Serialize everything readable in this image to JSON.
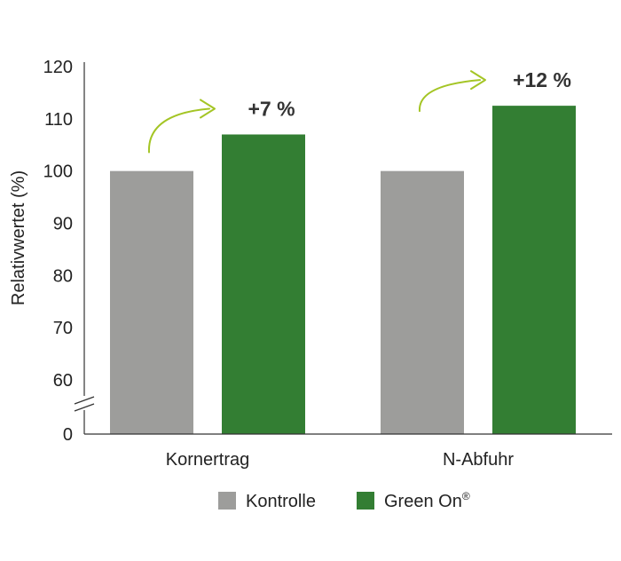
{
  "chart_data": {
    "type": "bar",
    "ylabel": "Relativwertet (%)",
    "xlabel": "",
    "title": "",
    "categories": [
      "Kornertrag",
      "N-Abfuhr"
    ],
    "series": [
      {
        "name": "Kontrolle",
        "values": [
          100,
          100
        ],
        "color": "#9d9d9b"
      },
      {
        "name": "Green On",
        "values": [
          107,
          112.5
        ],
        "color": "#337e33"
      }
    ],
    "yticks": [
      120,
      110,
      100,
      90,
      80,
      70,
      60,
      0
    ],
    "ylim": [
      0,
      120
    ],
    "axis_break": true,
    "data_labels": [
      "+7 %",
      "+12 %"
    ],
    "annotation_color": "#a4c525",
    "grid": false,
    "legend_position": "bottom-center"
  },
  "legend": {
    "items": [
      {
        "label": "Kontrolle",
        "sup": "",
        "color": "#9d9d9b"
      },
      {
        "label": "Green On",
        "sup": "®",
        "color": "#337e33"
      }
    ]
  }
}
